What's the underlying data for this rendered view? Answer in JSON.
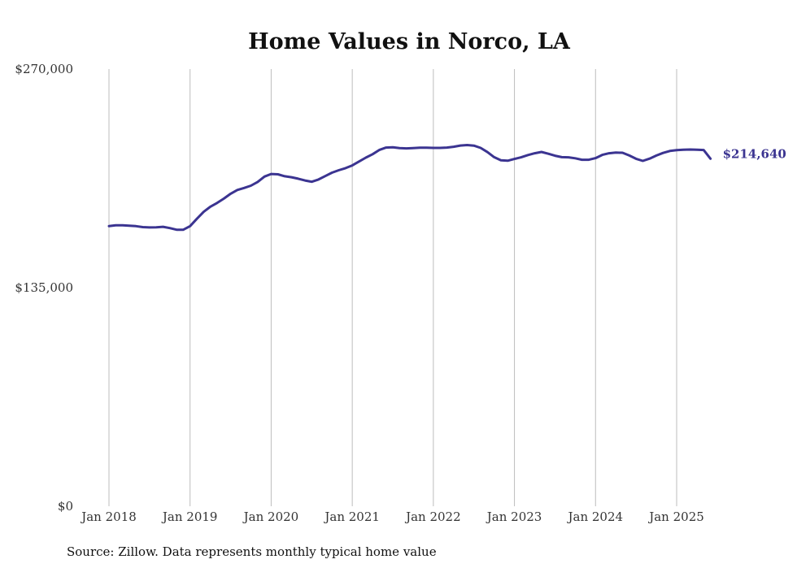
{
  "chart_data": {
    "type": "line",
    "title": "Home Values in Norco, LA",
    "xlabel": "",
    "ylabel": "",
    "ylim": [
      0,
      270000
    ],
    "y_ticks": [
      0,
      135000,
      270000
    ],
    "y_tick_labels": [
      "$0",
      "$135,000",
      "$270,000"
    ],
    "x_ticks": [
      2018,
      2019,
      2020,
      2021,
      2022,
      2023,
      2024,
      2025
    ],
    "x_tick_labels": [
      "Jan 2018",
      "Jan 2019",
      "Jan 2020",
      "Jan 2021",
      "Jan 2022",
      "Jan 2023",
      "Jan 2024",
      "Jan 2025"
    ],
    "grid": "vertical",
    "series": [
      {
        "name": "Typical home value",
        "color": "#3b3491",
        "end_label": "$214,640",
        "x": [
          2018.0,
          2018.083,
          2018.167,
          2018.25,
          2018.333,
          2018.417,
          2018.5,
          2018.583,
          2018.667,
          2018.75,
          2018.833,
          2018.917,
          2019.0,
          2019.083,
          2019.167,
          2019.25,
          2019.333,
          2019.417,
          2019.5,
          2019.583,
          2019.667,
          2019.75,
          2019.833,
          2019.917,
          2020.0,
          2020.083,
          2020.167,
          2020.25,
          2020.333,
          2020.417,
          2020.5,
          2020.583,
          2020.667,
          2020.75,
          2020.833,
          2020.917,
          2021.0,
          2021.083,
          2021.167,
          2021.25,
          2021.333,
          2021.417,
          2021.5,
          2021.583,
          2021.667,
          2021.75,
          2021.833,
          2021.917,
          2022.0,
          2022.083,
          2022.167,
          2022.25,
          2022.333,
          2022.417,
          2022.5,
          2022.583,
          2022.667,
          2022.75,
          2022.833,
          2022.917,
          2023.0,
          2023.083,
          2023.167,
          2023.25,
          2023.333,
          2023.417,
          2023.5,
          2023.583,
          2023.667,
          2023.75,
          2023.833,
          2023.917,
          2024.0,
          2024.083,
          2024.167,
          2024.25,
          2024.333,
          2024.417,
          2024.5,
          2024.583,
          2024.667,
          2024.75,
          2024.833,
          2024.917,
          2025.0,
          2025.083,
          2025.167,
          2025.25,
          2025.333,
          2025.417
        ],
        "values": [
          173000,
          173500,
          173500,
          173300,
          173000,
          172400,
          172200,
          172300,
          172600,
          171800,
          170800,
          170800,
          173000,
          177500,
          181800,
          185000,
          187300,
          190000,
          193000,
          195300,
          196600,
          198000,
          200300,
          203600,
          205200,
          205000,
          203800,
          203200,
          202300,
          201200,
          200400,
          201800,
          203900,
          206000,
          207500,
          208800,
          210500,
          212900,
          215300,
          217400,
          220000,
          221500,
          221700,
          221200,
          221000,
          221200,
          221400,
          221400,
          221300,
          221300,
          221500,
          222000,
          222800,
          223100,
          222700,
          221300,
          218700,
          215600,
          213700,
          213400,
          214500,
          215500,
          216900,
          218000,
          218800,
          217700,
          216500,
          215600,
          215500,
          214900,
          214000,
          214000,
          215000,
          217000,
          218000,
          218400,
          218300,
          216600,
          214600,
          213300,
          214700,
          216600,
          218200,
          219400,
          219900,
          220200,
          220300,
          220200,
          220000,
          214640
        ]
      }
    ],
    "source": "Source: Zillow. Data represents monthly typical home value"
  }
}
